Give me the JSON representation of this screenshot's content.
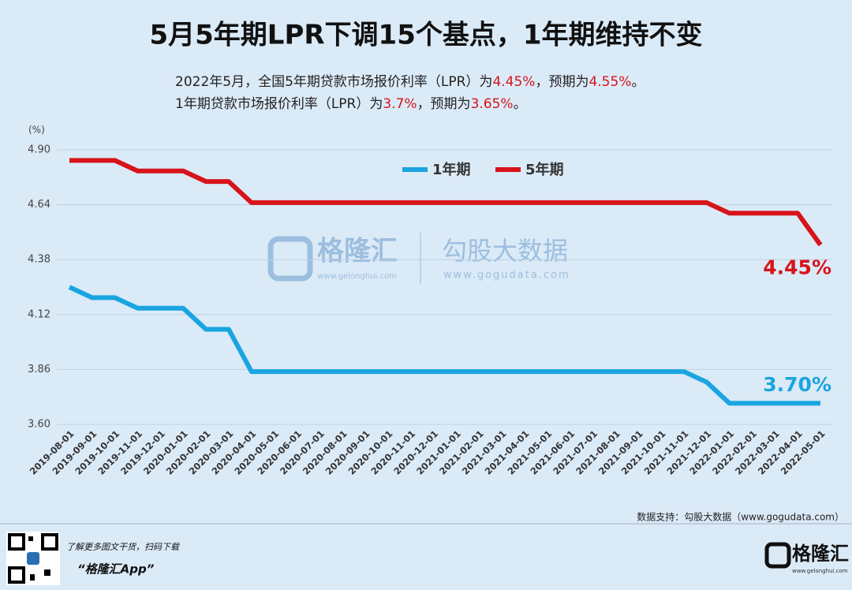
{
  "chart_data": {
    "type": "line",
    "title": "5月5年期LPR下调15个基点，1年期维持不变",
    "subtitle": [
      [
        {
          "text": "2022年5月，全国5年期贷款市场报价利率（LPR）为"
        },
        {
          "text": "4.45%",
          "color": "#d7141a"
        },
        {
          "text": "，预期为"
        },
        {
          "text": "4.55%",
          "color": "#d7141a"
        },
        {
          "text": "。"
        }
      ],
      [
        {
          "text": "1年期贷款市场报价利率（LPR）为"
        },
        {
          "text": "3.7%",
          "color": "#d7141a"
        },
        {
          "text": "，预期为"
        },
        {
          "text": "3.65%",
          "color": "#d7141a"
        },
        {
          "text": "。"
        }
      ]
    ],
    "y_label": "(%)",
    "categories": [
      "2019-08-01",
      "2019-09-01",
      "2019-10-01",
      "2019-11-01",
      "2019-12-01",
      "2020-01-01",
      "2020-02-01",
      "2020-03-01",
      "2020-04-01",
      "2020-05-01",
      "2020-06-01",
      "2020-07-01",
      "2020-08-01",
      "2020-09-01",
      "2020-10-01",
      "2020-11-01",
      "2020-12-01",
      "2021-01-01",
      "2021-02-01",
      "2021-03-01",
      "2021-04-01",
      "2021-05-01",
      "2021-06-01",
      "2021-07-01",
      "2021-08-01",
      "2021-09-01",
      "2021-10-01",
      "2021-11-01",
      "2021-12-01",
      "2022-01-01",
      "2022-02-01",
      "2022-03-01",
      "2022-04-01",
      "2022-05-01"
    ],
    "series": [
      {
        "name": "1年期",
        "color": "#1aa5e0",
        "values": [
          4.25,
          4.2,
          4.2,
          4.15,
          4.15,
          4.15,
          4.05,
          4.05,
          3.85,
          3.85,
          3.85,
          3.85,
          3.85,
          3.85,
          3.85,
          3.85,
          3.85,
          3.85,
          3.85,
          3.85,
          3.85,
          3.85,
          3.85,
          3.85,
          3.85,
          3.85,
          3.85,
          3.85,
          3.8,
          3.7,
          3.7,
          3.7,
          3.7,
          3.7
        ],
        "value_labels": [
          null,
          null,
          null,
          null,
          null,
          null,
          null,
          null,
          null,
          null,
          null,
          null,
          null,
          null,
          null,
          null,
          null,
          null,
          null,
          null,
          null,
          null,
          null,
          null,
          null,
          null,
          null,
          null,
          null,
          null,
          null,
          null,
          null,
          "3.70%"
        ]
      },
      {
        "name": "5年期",
        "color": "#d7141a",
        "values": [
          4.85,
          4.85,
          4.85,
          4.8,
          4.8,
          4.8,
          4.75,
          4.75,
          4.65,
          4.65,
          4.65,
          4.65,
          4.65,
          4.65,
          4.65,
          4.65,
          4.65,
          4.65,
          4.65,
          4.65,
          4.65,
          4.65,
          4.65,
          4.65,
          4.65,
          4.65,
          4.65,
          4.65,
          4.65,
          4.6,
          4.6,
          4.6,
          4.6,
          4.45
        ],
        "value_labels": [
          null,
          null,
          null,
          null,
          null,
          null,
          null,
          null,
          null,
          null,
          null,
          null,
          null,
          null,
          null,
          null,
          null,
          null,
          null,
          null,
          null,
          null,
          null,
          null,
          null,
          null,
          null,
          null,
          null,
          null,
          null,
          null,
          null,
          "4.45%"
        ]
      }
    ],
    "ylim": [
      3.6,
      4.9
    ],
    "yticks": [
      {
        "value": 3.6,
        "label": "3.60"
      },
      3.86,
      4.12,
      4.38,
      4.64,
      {
        "value": 4.9,
        "label": "4.90"
      }
    ],
    "grid": true,
    "legend": "top",
    "watermark": {
      "brand": "格隆汇",
      "brand_url": "www.gelonghui.com",
      "partner": "勾股大数据",
      "partner_url": "www.gogudata.com"
    },
    "source": "数据支持：勾股大数据（www.gogudata.com）",
    "footer": {
      "promo": "了解更多图文干货，扫码下载",
      "app": "“格隆汇App”",
      "logo": "格隆汇",
      "logo_url": "www.gelonghui.com"
    }
  }
}
